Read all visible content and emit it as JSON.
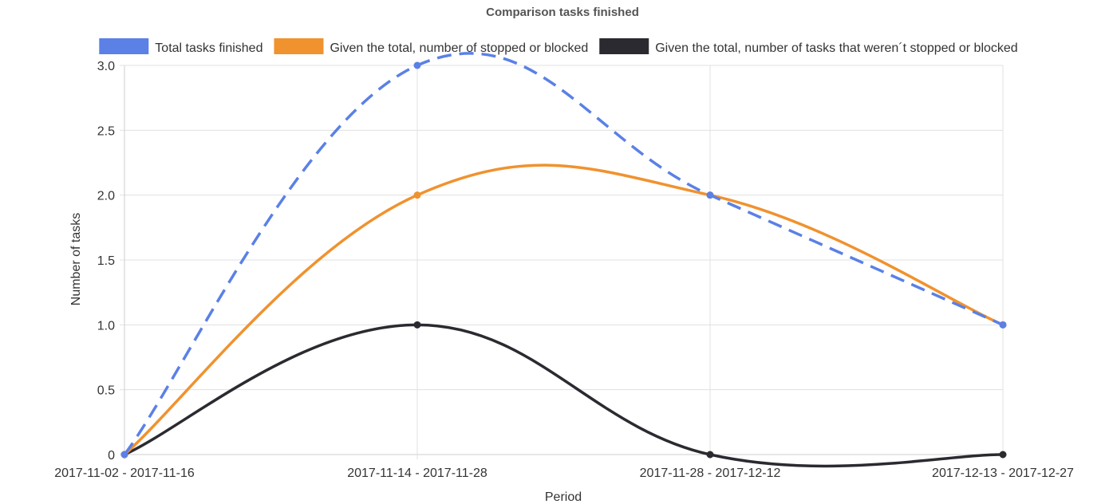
{
  "chart_data": {
    "type": "line",
    "title": "Comparison tasks finished",
    "xlabel": "Period",
    "ylabel": "Number of tasks",
    "categories": [
      "2017-11-02 - 2017-11-16",
      "2017-11-14 - 2017-11-28",
      "2017-11-28 - 2017-12-12",
      "2017-12-13 - 2017-12-27"
    ],
    "ylim": [
      0,
      3
    ],
    "yticks": [
      "0",
      "0.5",
      "1.0",
      "1.5",
      "2.0",
      "2.5",
      "3.0"
    ],
    "ytick_values": [
      0,
      0.5,
      1,
      1.5,
      2,
      2.5,
      3
    ],
    "grid": true,
    "legend_position": "top",
    "series": [
      {
        "name": "Total tasks finished",
        "values": [
          0,
          3,
          2,
          1
        ],
        "color": "#5b80e6",
        "dashed": true
      },
      {
        "name": "Given the total, number of stopped or blocked",
        "values": [
          0,
          2,
          2,
          1
        ],
        "color": "#f0922e",
        "dashed": false
      },
      {
        "name": "Given the total, number of tasks that weren´t stopped or blocked",
        "values": [
          0,
          1,
          0,
          0
        ],
        "color": "#2b2a30",
        "dashed": false
      }
    ]
  }
}
